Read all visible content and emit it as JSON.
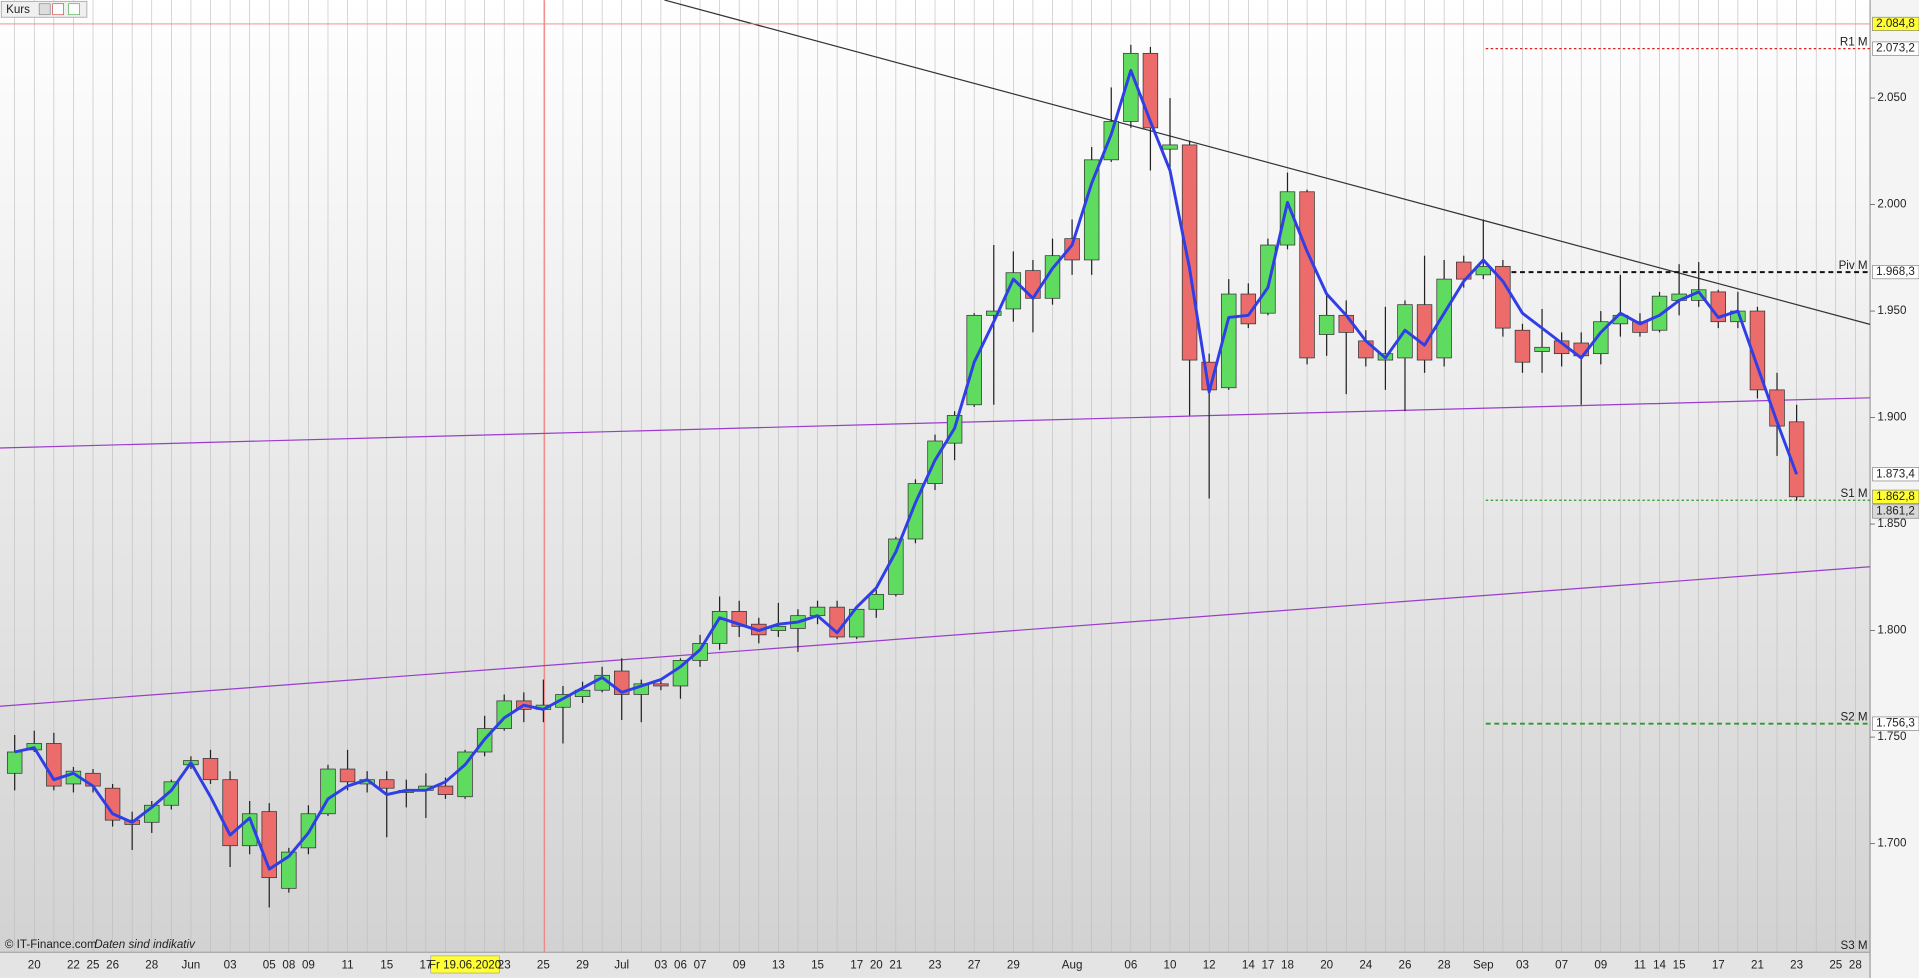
{
  "chart_data": {
    "type": "candlestick",
    "title": "Kurs",
    "footer": "© IT-Finance.com",
    "footer_note": "Daten sind indikativ",
    "categories": [
      null,
      "20",
      null,
      "22",
      "25",
      "26",
      null,
      "28",
      null,
      "Jun",
      null,
      "03",
      null,
      "05",
      "08",
      "09",
      null,
      "11",
      null,
      "15",
      null,
      "17",
      null,
      "Fr 19.06.2020",
      null,
      "23",
      null,
      "25",
      null,
      "29",
      null,
      "Jul",
      null,
      "03",
      "06",
      "07",
      null,
      "09",
      null,
      "13",
      null,
      "15",
      null,
      "17",
      "20",
      "21",
      null,
      "23",
      null,
      "27",
      null,
      "29",
      null,
      null,
      "Aug",
      null,
      null,
      "06",
      null,
      "10",
      null,
      "12",
      null,
      "14",
      "17",
      "18",
      null,
      "20",
      null,
      "24",
      null,
      "26",
      null,
      "28",
      null,
      "Sep",
      null,
      "03",
      null,
      "07",
      null,
      "09",
      null,
      "11",
      "14",
      "15",
      null,
      "17",
      null,
      "21",
      null,
      "23",
      null,
      "25",
      "28"
    ],
    "open": [
      1733,
      1744,
      1747,
      1728,
      1733,
      1726,
      1711,
      1710,
      1718,
      1737,
      1740,
      1730,
      1699,
      1715,
      1679,
      1698,
      1714,
      1735,
      1728,
      1730,
      1724,
      1725,
      1727,
      1722,
      1743,
      1754,
      1767,
      1763,
      1764,
      1769,
      1772,
      1781,
      1770,
      1775,
      1774,
      1786,
      1794,
      1809,
      1803,
      1800,
      1801,
      1807,
      1811,
      1797,
      1810,
      1817,
      1843,
      1869,
      1888,
      1906,
      1948,
      1951,
      1969,
      1956,
      1984,
      1974,
      2021,
      2039,
      2071,
      2026,
      2028,
      1926,
      1914,
      1958,
      1949,
      1981,
      2006,
      1939,
      1948,
      1936,
      1927,
      1928,
      1953,
      1928,
      1973,
      1967,
      1971,
      1941,
      1931,
      1936,
      1935,
      1930,
      1944,
      1945,
      1941,
      1955,
      1955,
      1959,
      1945,
      1950,
      1913,
      1898,
      null,
      null,
      null
    ],
    "high": [
      1751,
      1753,
      1752,
      1736,
      1735,
      1728,
      1715,
      1720,
      1730,
      1741,
      1744,
      1734,
      1720,
      1719,
      1698,
      1718,
      1737,
      1744,
      1734,
      1734,
      1730,
      1733,
      1731,
      1744,
      1760,
      1770,
      1771,
      1777,
      1774,
      1776,
      1783,
      1787,
      1777,
      1777,
      1787,
      1798,
      1816,
      1814,
      1806,
      1813,
      1810,
      1814,
      1814,
      1811,
      1819,
      1844,
      1871,
      1892,
      1903,
      1949,
      1981,
      1978,
      1974,
      1984,
      1993,
      2027,
      2055,
      2075,
      2074,
      2050,
      2030,
      1930,
      1965,
      1963,
      1984,
      2015,
      2007,
      1958,
      1955,
      1941,
      1952,
      1955,
      1976,
      1974,
      1976,
      1993,
      1974,
      1944,
      1951,
      1940,
      1940,
      1950,
      1967,
      1949,
      1959,
      1972,
      1973,
      1960,
      1959,
      1952,
      1921,
      1906,
      null,
      null,
      null
    ],
    "low": [
      1725,
      1743,
      1725,
      1724,
      1724,
      1708,
      1697,
      1705,
      1716,
      1735,
      1728,
      1689,
      1695,
      1670,
      1677,
      1695,
      1713,
      1725,
      1724,
      1703,
      1717,
      1712,
      1721,
      1721,
      1741,
      1753,
      1757,
      1757,
      1747,
      1766,
      1771,
      1758,
      1757,
      1772,
      1768,
      1783,
      1791,
      1797,
      1794,
      1797,
      1790,
      1803,
      1796,
      1796,
      1806,
      1816,
      1841,
      1866,
      1880,
      1905,
      1906,
      1945,
      1940,
      1953,
      1967,
      1967,
      2020,
      2036,
      2016,
      2016,
      1901,
      1862,
      1913,
      1942,
      1948,
      1979,
      1925,
      1929,
      1911,
      1924,
      1913,
      1903,
      1921,
      1924,
      1961,
      1965,
      1938,
      1921,
      1921,
      1924,
      1906,
      1925,
      1938,
      1938,
      1940,
      1948,
      1952,
      1942,
      1942,
      1909,
      1882,
      1861,
      null,
      null,
      null
    ],
    "close": [
      1743,
      1747,
      1727,
      1734,
      1727,
      1711,
      1709,
      1718,
      1729,
      1739,
      1730,
      1699,
      1714,
      1684,
      1696,
      1714,
      1735,
      1729,
      1730,
      1726,
      1725,
      1727,
      1723,
      1743,
      1754,
      1767,
      1763,
      1765,
      1770,
      1772,
      1779,
      1770,
      1775,
      1774,
      1786,
      1794,
      1809,
      1802,
      1798,
      1802,
      1807,
      1811,
      1797,
      1810,
      1817,
      1843,
      1869,
      1889,
      1901,
      1948,
      1950,
      1968,
      1956,
      1976,
      1974,
      2021,
      2039,
      2071,
      2036,
      2028,
      1927,
      1913,
      1958,
      1944,
      1981,
      2006,
      1928,
      1948,
      1940,
      1928,
      1930,
      1953,
      1927,
      1965,
      1965,
      1971,
      1942,
      1926,
      1933,
      1930,
      1929,
      1945,
      1948,
      1940,
      1957,
      1958,
      1960,
      1945,
      1950,
      1913,
      1896,
      1862.8,
      null,
      null,
      null
    ],
    "close_labels": [
      null,
      null,
      null,
      null,
      null,
      null,
      null,
      null,
      null,
      null,
      null,
      null,
      null,
      null,
      null,
      null,
      null,
      null,
      null,
      null,
      null,
      null,
      null,
      null,
      null,
      null,
      null,
      null,
      null,
      null,
      null,
      null,
      null,
      null,
      null,
      null,
      null,
      null,
      null,
      null,
      null,
      null,
      null,
      null,
      null,
      null,
      null,
      null,
      null,
      null,
      null,
      null,
      null,
      null,
      null,
      null,
      null,
      null,
      null,
      null,
      null,
      null,
      null,
      null,
      null,
      null,
      null,
      null,
      null,
      null,
      null,
      null,
      null,
      null,
      null,
      null,
      null,
      null,
      null,
      null,
      null,
      null,
      null,
      null,
      null,
      null,
      null,
      null,
      null,
      null,
      null,
      "1.862,8",
      null,
      null,
      null
    ],
    "close_label_color": "#ffff33",
    "up_color": "#5fdc5f",
    "down_color": "#ec6b6b",
    "line": {
      "color": "#2f3ee6",
      "values": [
        1743,
        1745,
        1730,
        1733,
        1727,
        1714,
        1710,
        1717,
        1725,
        1738,
        1722,
        1704,
        1712,
        1688,
        1694,
        1705,
        1721,
        1727,
        1730,
        1723,
        1725,
        1725,
        1729,
        1737,
        1749,
        1759,
        1765,
        1763,
        1768,
        1773,
        1778,
        1771,
        1774,
        1777,
        1783,
        1791,
        1806,
        1803,
        1800,
        1803,
        1804,
        1807,
        1799,
        1811,
        1820,
        1837,
        1860,
        1880,
        1895,
        1926,
        1945,
        1965,
        1956,
        1970,
        1981,
        2010,
        2033,
        2063,
        2039,
        2016,
        1970,
        1912,
        1947,
        1948,
        1961,
        2001,
        1978,
        1958,
        1948,
        1936,
        1928,
        1941,
        1934,
        1949,
        1964,
        1974,
        1964,
        1949,
        1942,
        1935,
        1928,
        1940,
        1949,
        1944,
        1948,
        1955,
        1959,
        1947,
        1950,
        1924,
        1898,
        1873.4,
        null,
        null,
        null
      ],
      "value_labels": [
        null,
        null,
        null,
        null,
        null,
        null,
        null,
        null,
        null,
        null,
        null,
        null,
        null,
        null,
        null,
        null,
        null,
        null,
        null,
        null,
        null,
        null,
        null,
        null,
        null,
        null,
        null,
        null,
        null,
        null,
        null,
        null,
        null,
        null,
        null,
        null,
        null,
        null,
        null,
        null,
        null,
        null,
        null,
        null,
        null,
        null,
        null,
        null,
        null,
        null,
        null,
        null,
        null,
        null,
        null,
        null,
        null,
        null,
        null,
        null,
        null,
        null,
        null,
        null,
        null,
        null,
        null,
        null,
        null,
        null,
        null,
        null,
        null,
        null,
        null,
        null,
        null,
        null,
        null,
        null,
        null,
        null,
        null,
        null,
        null,
        null,
        null,
        null,
        null,
        null,
        null,
        "1.873,4",
        null,
        null,
        null
      ]
    },
    "ylim": [
      1649,
      2096
    ],
    "yticks": [
      {
        "value": 1700,
        "label": "1.700"
      },
      {
        "value": 1750,
        "label": "1.750"
      },
      {
        "value": 1800,
        "label": "1.800"
      },
      {
        "value": 1850,
        "label": "1.850"
      },
      {
        "value": 1900,
        "label": "1.900"
      },
      {
        "value": 1950,
        "label": "1.950"
      },
      {
        "value": 2000,
        "label": "2.000"
      },
      {
        "value": 2050,
        "label": "2.050"
      }
    ],
    "levels": [
      {
        "value": 2084.8,
        "label": "2.084,8",
        "color": "#f08080",
        "style": "solid",
        "box_color": "#ffff33"
      },
      {
        "name": "R1 M",
        "value": 2073.2,
        "label": "2.073,2",
        "color": "#e02020",
        "style": "dashed",
        "box_color": "#ffffff"
      },
      {
        "name": "Piv M",
        "value": 1968.3,
        "label": "1.968,3",
        "color": "#111111",
        "style": "dashed",
        "box_color": "#ffffff"
      },
      {
        "name": "S1 M",
        "value": 1861.2,
        "label": "1.861,2",
        "color": "#2a9a2a",
        "style": "dashed",
        "box_color": "#d8d8d8"
      },
      {
        "name": "S2 M",
        "value": 1756.3,
        "label": "1.756,3",
        "color": "#2a9a2a",
        "style": "dashed",
        "box_color": "#ffffff"
      },
      {
        "name": "S3 M",
        "color": "#2a9a2a"
      }
    ]
  }
}
